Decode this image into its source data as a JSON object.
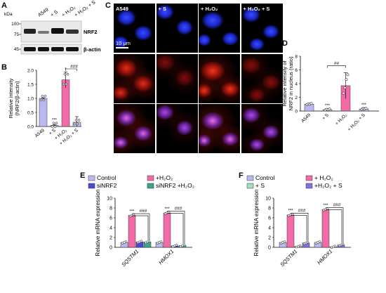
{
  "panels": {
    "a": "A",
    "b": "B",
    "c": "C",
    "d": "D",
    "e": "E",
    "f": "F"
  },
  "colors": {
    "control": "#b9b9f2",
    "h2o2": "#f26aa8",
    "sinrf2": "#4a4ad6",
    "sinrf2_h2o2": "#3aa58a",
    "s": "#9fe0c2",
    "h2o2_s": "#7f72de",
    "blot_bg": "#e9e9e9",
    "band": "#1a1a1a"
  },
  "panel_a": {
    "kda_label": "kDa",
    "lanes": [
      "A549",
      "+ S",
      "+ H₂O₂",
      "+ H₂O₂ + S"
    ],
    "markers": [
      "100",
      "75",
      "45"
    ],
    "bands": [
      "NRF2",
      "β-actin"
    ]
  },
  "panel_b": {
    "ylabel_line1": "Relative intensity",
    "ylabel_line2": "(NRF2/β-actin)",
    "yticks": [
      "0.0",
      "0.5",
      "1.0",
      "1.5",
      "2.0"
    ],
    "categories": [
      "A549",
      "+ S",
      "+ H₂O₂",
      "+ H₂O₂ + S"
    ],
    "sig": {
      "s": "***",
      "h2o2": "*",
      "bracket": "###"
    },
    "chart_data": {
      "type": "bar",
      "categories": [
        "A549",
        "+ S",
        "+ H₂O₂",
        "+ H₂O₂ + S"
      ],
      "values": [
        1.0,
        0.04,
        1.66,
        0.15
      ],
      "errors": [
        0.02,
        0.03,
        0.28,
        0.2
      ],
      "ylim": [
        0,
        2.0
      ]
    }
  },
  "panel_c": {
    "labels": [
      "A549",
      "+ S",
      "+ H₂O₂",
      "+ H₂O₂ + S"
    ],
    "scale": "10 μm",
    "rows": [
      "dapi",
      "nrf2",
      "merge"
    ]
  },
  "panel_d": {
    "ylabel_line1": "Relative intensity of",
    "ylabel_line2": "NRF2 in nucleus (ratio)",
    "yticks": [
      "0",
      "2",
      "4",
      "6",
      "8"
    ],
    "categories": [
      "A549",
      "+ S",
      "+ H₂O₂",
      "+ H₂O₂ + S"
    ],
    "sig": {
      "s": "***",
      "h2o2_s": "***",
      "bracket": "##"
    },
    "chart_data": {
      "type": "bar",
      "categories": [
        "A549",
        "+ S",
        "+ H₂O₂",
        "+ H₂O₂ + S"
      ],
      "values": [
        1.0,
        0.2,
        3.7,
        0.3
      ],
      "errors": [
        0.1,
        0.15,
        1.9,
        0.2
      ],
      "ylim": [
        0,
        8
      ]
    }
  },
  "panel_e": {
    "legend": [
      "Control",
      "+H₂O₂",
      "siNRF2",
      "siNRF2 +H₂O₂"
    ],
    "ylabel": "Relative mRNA expression",
    "yticks": [
      "0",
      "2",
      "4",
      "6",
      "8",
      "10"
    ],
    "genes": [
      "SQSTM1",
      "HMOX1"
    ],
    "sig": {
      "g1": "***",
      "g2": "***",
      "b1": "###",
      "b2": "###"
    },
    "chart_data": {
      "type": "bar",
      "categories": [
        "SQSTM1",
        "HMOX1"
      ],
      "ylim": [
        0,
        10
      ],
      "series": [
        {
          "name": "Control",
          "values": [
            1.0,
            1.0
          ]
        },
        {
          "name": "+H₂O₂",
          "values": [
            6.5,
            7.0
          ]
        },
        {
          "name": "siNRF2",
          "values": [
            1.1,
            0.3
          ]
        },
        {
          "name": "siNRF2 +H₂O₂",
          "values": [
            1.1,
            0.35
          ]
        }
      ]
    }
  },
  "panel_f": {
    "legend": [
      "Control",
      "+ H₂O₂",
      "+ S",
      "+H₂O₂ + S"
    ],
    "ylabel": "Relative mRNA expression",
    "yticks": [
      "0",
      "2",
      "4",
      "6",
      "8",
      "10"
    ],
    "genes": [
      "SQSTM1",
      "HMOX1"
    ],
    "sig": {
      "g1": "***",
      "g2": "***",
      "b1": "###",
      "b2": "###"
    },
    "chart_data": {
      "type": "bar",
      "categories": [
        "SQSTM1",
        "HMOX1"
      ],
      "ylim": [
        0,
        10
      ],
      "series": [
        {
          "name": "Control",
          "values": [
            1.0,
            1.0
          ]
        },
        {
          "name": "+ H₂O₂",
          "values": [
            6.6,
            7.7
          ]
        },
        {
          "name": "+ S",
          "values": [
            0.2,
            0.1
          ]
        },
        {
          "name": "+H₂O₂ + S",
          "values": [
            0.9,
            0.5
          ]
        }
      ]
    }
  }
}
